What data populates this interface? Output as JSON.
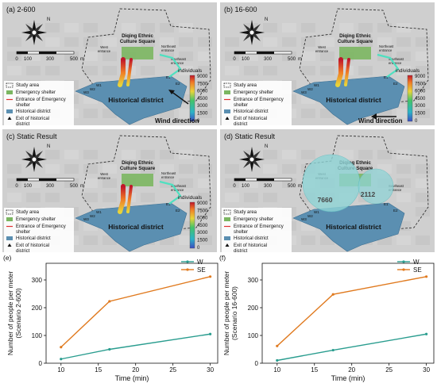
{
  "panels": [
    {
      "id": "a",
      "title": "(a) 2-600",
      "wind_label": "Wind direction",
      "wind_arrow": "northwest",
      "labels": {
        "square": [
          "Diqing Ethnic",
          "Culture Square"
        ],
        "west_entrance": [
          "West",
          "entrance"
        ],
        "northeast_entrance": [
          "Northeast",
          "entrance"
        ],
        "southeast_entrance": [
          "Southeast",
          "entrance"
        ],
        "district": "Historical district",
        "exits": [
          "E1",
          "E2",
          "W1",
          "W2",
          "W3"
        ]
      }
    },
    {
      "id": "b",
      "title": "(b) 16-600",
      "wind_label": "Wind direction",
      "wind_arrow": "west",
      "labels": {
        "square": [
          "Diqing Ethnic",
          "Culture Square"
        ],
        "west_entrance": [
          "West",
          "entrance"
        ],
        "northeast_entrance": [
          "Northeast",
          "entrance"
        ],
        "southeast_entrance": [
          "Southeast",
          "entrance"
        ],
        "district": "Historical district",
        "exits": [
          "E1",
          "E2",
          "W1",
          "W2",
          "W3"
        ]
      }
    },
    {
      "id": "c",
      "title": "(c) Static Result",
      "labels": {
        "square": [
          "Diqing Ethnic",
          "Culture Square"
        ],
        "west_entrance": [
          "West",
          "entrance"
        ],
        "northeast_entrance": [
          "Northeast",
          "entrance"
        ],
        "southeast_entrance": [
          "Southeast",
          "entrance"
        ],
        "district": "Historical district",
        "exits": [
          "E1",
          "E2",
          "W1",
          "W2",
          "W3"
        ]
      }
    },
    {
      "id": "d",
      "title": "(d) Static Result",
      "circle_values": [
        "7660",
        "2112"
      ],
      "labels": {
        "square": [
          "Diqing Ethnic",
          "Culture Square"
        ],
        "west_entrance": [
          "West",
          "entrance"
        ],
        "southeast_entrance": [
          "Southeast",
          "entrance"
        ],
        "district": "Historical district",
        "exits": [
          "E1",
          "E2",
          "W1",
          "W2",
          "W3"
        ]
      }
    }
  ],
  "compass_label": "N",
  "scale_bar": {
    "ticks": [
      "0",
      "100",
      "300",
      "500"
    ],
    "unit": "m"
  },
  "legend": {
    "items": [
      {
        "label": "Study area",
        "symbol": "dashed-box"
      },
      {
        "label": "Emergency shelter",
        "symbol": "green-box"
      },
      {
        "label": "Entrance of Emergency shelter",
        "symbol": "red-line"
      },
      {
        "label": "Historical district",
        "symbol": "blue-box"
      },
      {
        "label": "Exit of historical district",
        "symbol": "arrow"
      }
    ]
  },
  "colorbar": {
    "title": "individuals",
    "ticks": [
      "9000",
      "7500",
      "6000",
      "4500",
      "3000",
      "1500",
      "0"
    ]
  },
  "colors": {
    "W": "#2a9d8f",
    "SE": "#e07a1f",
    "district": "#5b8fb1",
    "shelter": "#7bb661",
    "map_bg": "#cfcfcf"
  },
  "chart_data": [
    {
      "panel": "(e)",
      "type": "line",
      "xlabel": "Time (min)",
      "ylabel": "Number of people per meter",
      "ylabel2": "(Scenario 2-600)",
      "xlim": [
        8,
        31
      ],
      "ylim": [
        0,
        360
      ],
      "xticks": [
        10,
        15,
        20,
        25,
        30
      ],
      "yticks": [
        0,
        100,
        200,
        300
      ],
      "legend_position": "top-right",
      "series": [
        {
          "name": "W",
          "x": [
            10,
            16.5,
            30
          ],
          "y": [
            15,
            50,
            105
          ]
        },
        {
          "name": "SE",
          "x": [
            10,
            16.5,
            30
          ],
          "y": [
            58,
            223,
            312
          ]
        }
      ]
    },
    {
      "panel": "(f)",
      "type": "line",
      "xlabel": "Time (min)",
      "ylabel": "Number of people per meter",
      "ylabel2": "(Scenario 16-600)",
      "xlim": [
        8,
        31
      ],
      "ylim": [
        0,
        360
      ],
      "xticks": [
        10,
        15,
        20,
        25,
        30
      ],
      "yticks": [
        0,
        100,
        200,
        300
      ],
      "legend_position": "top-right",
      "series": [
        {
          "name": "W",
          "x": [
            10,
            17.5,
            30
          ],
          "y": [
            10,
            47,
            105
          ]
        },
        {
          "name": "SE",
          "x": [
            10,
            17.5,
            30
          ],
          "y": [
            62,
            248,
            312
          ]
        }
      ]
    }
  ]
}
